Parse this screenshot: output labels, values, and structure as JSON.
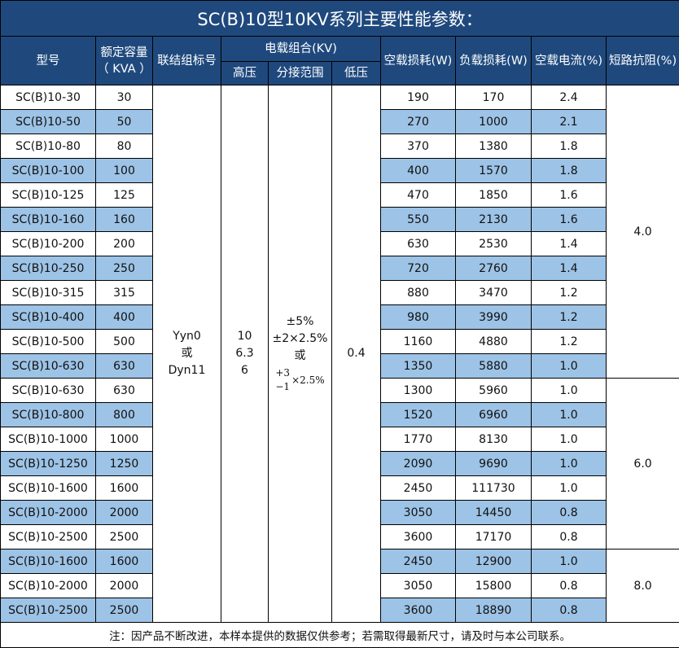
{
  "title": "SC(B)10型10KV系列主要性能参数：",
  "headers": {
    "model": "型号",
    "capacity": "额定容量",
    "capacity_unit": "（ KVA ）",
    "connection": "联结组标号",
    "voltage_group": "电载组合(KV)",
    "high_voltage": "高压",
    "tap_range": "分接范围",
    "low_voltage": "低压",
    "no_load_loss": "空载损耗(W)",
    "load_loss": "负载损耗(W)",
    "no_load_current": "空载电流(%)",
    "impedance": "短路抗阻(%)"
  },
  "merged": {
    "connection": [
      "Yyn0",
      "或",
      "Dyn11"
    ],
    "high_voltage": [
      "10",
      "6.3",
      "6"
    ],
    "tap_range": [
      "±5%",
      "±2×2.5%",
      "或"
    ],
    "tap_alt": {
      "plus": "+3",
      "minus": "−1",
      "tail": "×2.5%"
    },
    "low_voltage": "0.4"
  },
  "impedance_groups": [
    "4.0",
    "6.0",
    "8.0"
  ],
  "rows": [
    [
      "SC(B)10-30",
      "30",
      "190",
      "170",
      "2.4"
    ],
    [
      "SC(B)10-50",
      "50",
      "270",
      "1000",
      "2.1"
    ],
    [
      "SC(B)10-80",
      "80",
      "370",
      "1380",
      "1.8"
    ],
    [
      "SC(B)10-100",
      "100",
      "400",
      "1570",
      "1.8"
    ],
    [
      "SC(B)10-125",
      "125",
      "470",
      "1850",
      "1.6"
    ],
    [
      "SC(B)10-160",
      "160",
      "550",
      "2130",
      "1.6"
    ],
    [
      "SC(B)10-200",
      "200",
      "630",
      "2530",
      "1.4"
    ],
    [
      "SC(B)10-250",
      "250",
      "720",
      "2760",
      "1.4"
    ],
    [
      "SC(B)10-315",
      "315",
      "880",
      "3470",
      "1.2"
    ],
    [
      "SC(B)10-400",
      "400",
      "980",
      "3990",
      "1.2"
    ],
    [
      "SC(B)10-500",
      "500",
      "1160",
      "4880",
      "1.2"
    ],
    [
      "SC(B)10-630",
      "630",
      "1350",
      "5880",
      "1.0"
    ],
    [
      "SC(B)10-630",
      "630",
      "1300",
      "5960",
      "1.0"
    ],
    [
      "SC(B)10-800",
      "800",
      "1520",
      "6960",
      "1.0"
    ],
    [
      "SC(B)10-1000",
      "1000",
      "1770",
      "8130",
      "1.0"
    ],
    [
      "SC(B)10-1250",
      "1250",
      "2090",
      "9690",
      "1.0"
    ],
    [
      "SC(B)10-1600",
      "1600",
      "2450",
      "111730",
      "1.0"
    ],
    [
      "SC(B)10-2000",
      "2000",
      "3050",
      "14450",
      "0.8"
    ],
    [
      "SC(B)10-2500",
      "2500",
      "3600",
      "17170",
      "0.8"
    ],
    [
      "SC(B)10-1600",
      "1600",
      "2450",
      "12900",
      "1.0"
    ],
    [
      "SC(B)10-2000",
      "2000",
      "3050",
      "15800",
      "0.8"
    ],
    [
      "SC(B)10-2500",
      "2500",
      "3600",
      "18890",
      "0.8"
    ]
  ],
  "colors": {
    "header": "#1f497d",
    "row_alt": "#9dc3e6"
  },
  "footer": "注：因产品不断改进，本样本提供的数据仅供参考；若需取得最新尺寸，请及时与本公司联系。"
}
